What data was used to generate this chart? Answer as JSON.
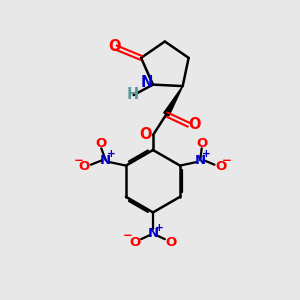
{
  "background_color": "#e8e8e8",
  "bond_color": "#000000",
  "atom_colors": {
    "O": "#ff0000",
    "N": "#0000cc",
    "H": "#5a9a9a",
    "C": "#000000",
    "plus": "#0000cc",
    "minus": "#ff0000"
  },
  "figsize": [
    3.0,
    3.0
  ],
  "dpi": 100
}
